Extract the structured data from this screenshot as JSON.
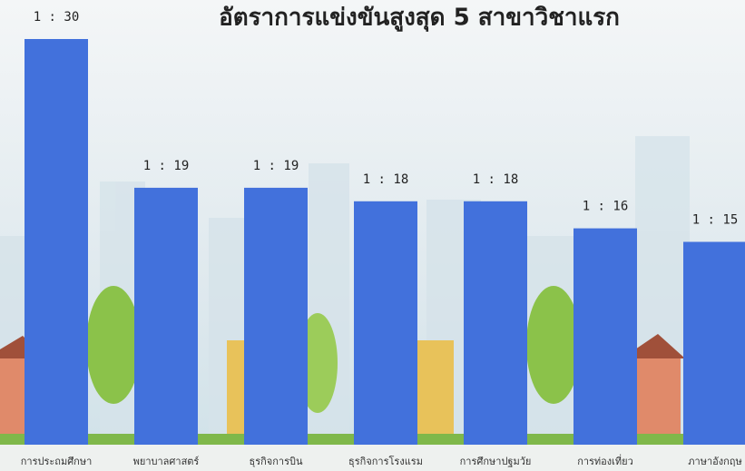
{
  "chart_data": {
    "type": "bar",
    "title": "อัตราการแข่งขันสูงสุด 5 สาขาวิชาแรก",
    "categories": [
      "การประถมศึกษา",
      "พยาบาลศาสตร์",
      "ธุรกิจการบิน",
      "ธุรกิจการโรงแรม",
      "การศึกษาปฐมวัย",
      "การท่องเที่ยว",
      "ภาษาอังกฤษ"
    ],
    "values": [
      30,
      19,
      19,
      18,
      18,
      16,
      15
    ],
    "value_labels": [
      "1 : 30",
      "1 : 19",
      "1 : 19",
      "1 : 18",
      "1 : 18",
      "1 : 16",
      "1 : 15"
    ],
    "color": "#4271dc"
  }
}
